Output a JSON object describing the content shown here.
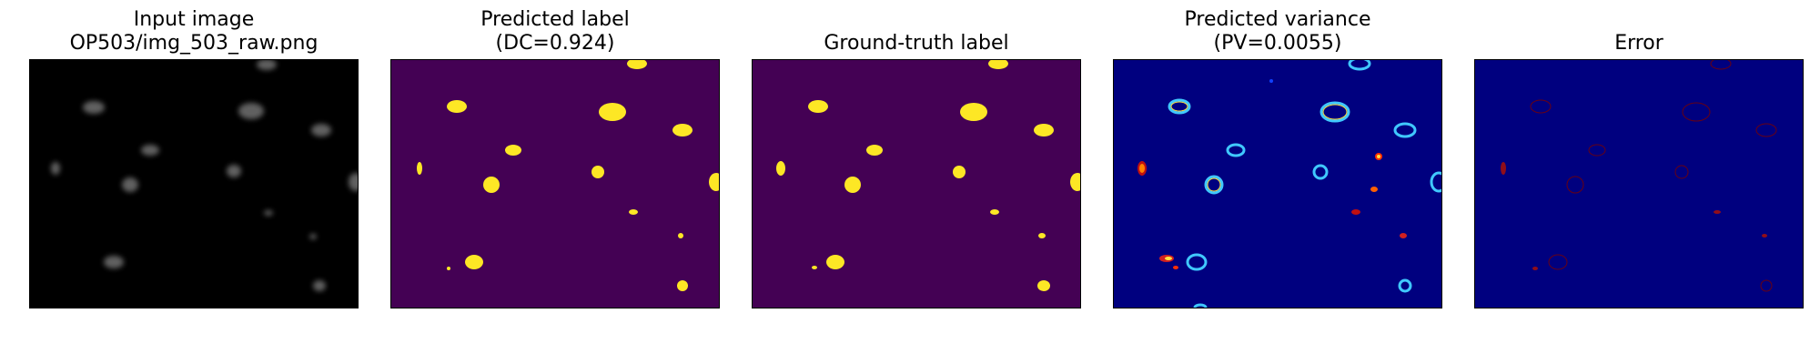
{
  "panels": [
    {
      "id": "input",
      "title_lines": [
        "Input image",
        "OP503/img_503_raw.png"
      ],
      "background": "#000000"
    },
    {
      "id": "predicted-label",
      "title_lines": [
        "Predicted label",
        "(DC=0.924)"
      ],
      "background": "#440154",
      "foreground": "#fde725"
    },
    {
      "id": "ground-truth",
      "title_lines": [
        "Ground-truth label"
      ],
      "background": "#440154",
      "foreground": "#fde725"
    },
    {
      "id": "predicted-variance",
      "title_lines": [
        "Predicted variance",
        "(PV=0.0055)"
      ],
      "background": "#00007f"
    },
    {
      "id": "error",
      "title_lines": [
        "Error"
      ],
      "background": "#00007f"
    }
  ]
}
